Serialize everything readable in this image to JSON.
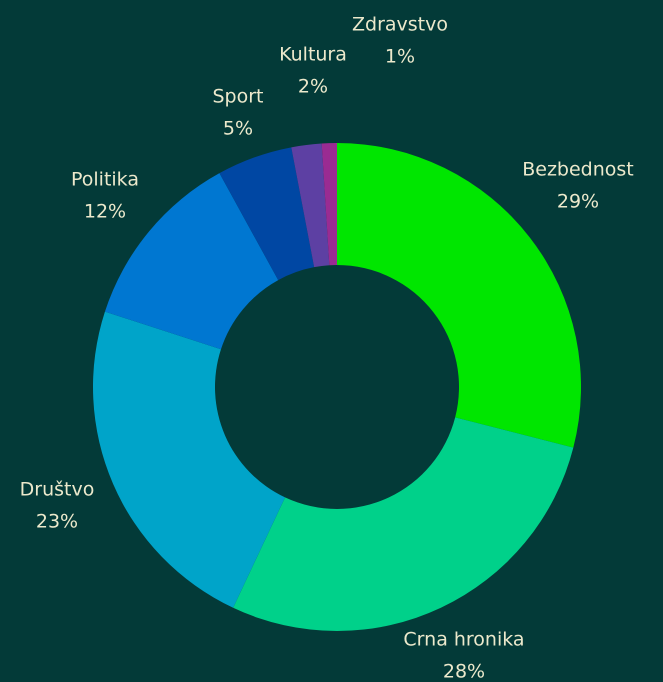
{
  "chart_data": {
    "type": "donut",
    "categories": [
      "Bezbednost",
      "Crna hronika",
      "Društvo",
      "Politika",
      "Sport",
      "Kultura",
      "Zdravstvo"
    ],
    "values": [
      29,
      28,
      23,
      12,
      5,
      2,
      1
    ],
    "value_labels": [
      "29%",
      "28%",
      "23%",
      "12%",
      "5%",
      "2%",
      "1%"
    ],
    "colors": [
      "#00e600",
      "#00d18a",
      "#00a4c9",
      "#0077d1",
      "#0047a3",
      "#5d40a3",
      "#9a2b92"
    ]
  }
}
